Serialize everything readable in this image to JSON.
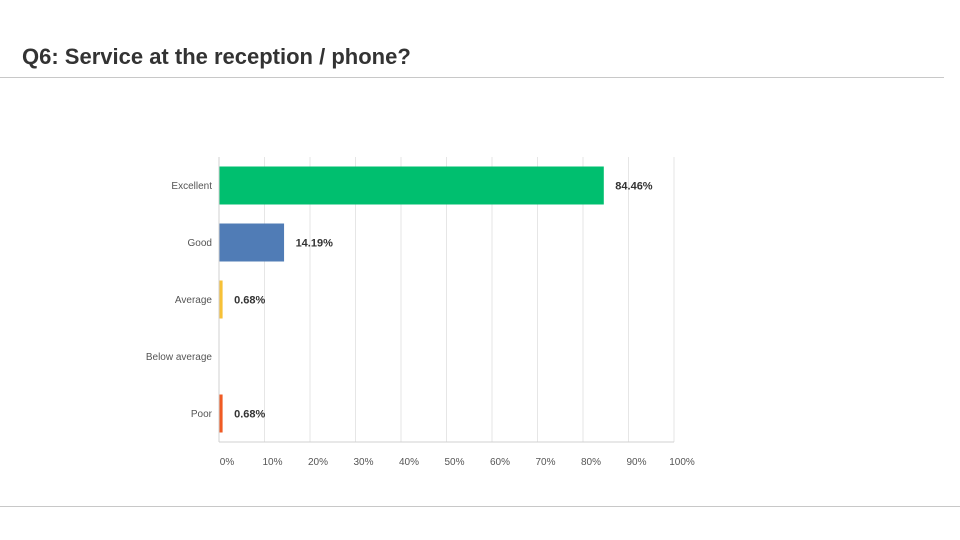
{
  "title": "Q6:  Service at the reception / phone?",
  "chart_data": {
    "type": "bar",
    "orientation": "horizontal",
    "categories": [
      "Excellent",
      "Good",
      "Average",
      "Below average",
      "Poor"
    ],
    "values": [
      84.46,
      14.19,
      0.68,
      0.0,
      0.68
    ],
    "value_labels": [
      "84.46%",
      "14.19%",
      "0.68%",
      "",
      "0.68%"
    ],
    "colors": [
      "#00bf6f",
      "#507cb6",
      "#f7c137",
      "#6bc8cd",
      "#f05b24"
    ],
    "xlim": [
      0,
      100
    ],
    "x_ticks": [
      "0%",
      "10%",
      "20%",
      "30%",
      "40%",
      "50%",
      "60%",
      "70%",
      "80%",
      "90%",
      "100%"
    ],
    "grid": true,
    "xlabel": "",
    "ylabel": ""
  }
}
